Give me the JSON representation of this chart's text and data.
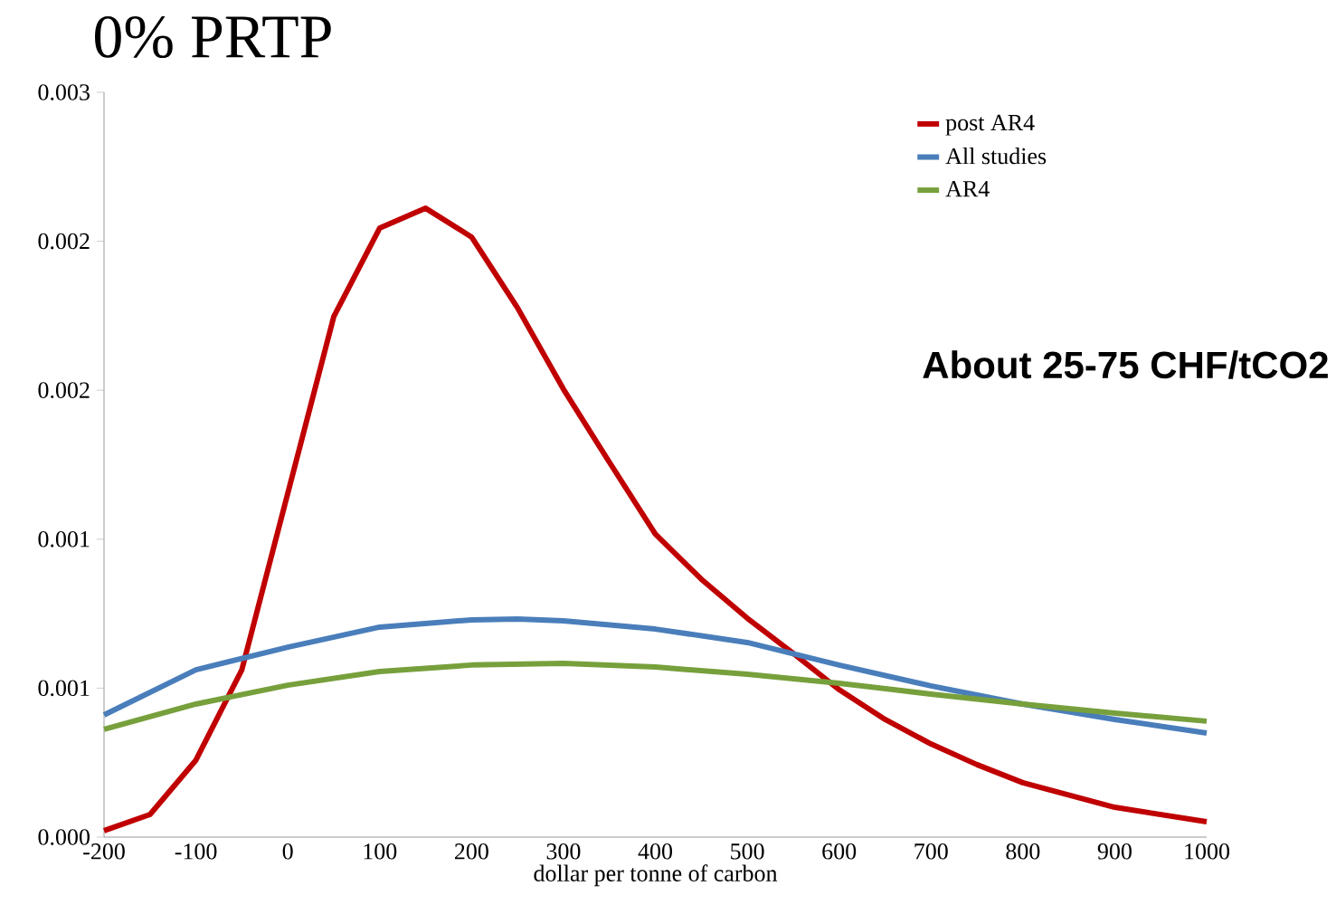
{
  "chart_data": {
    "type": "line",
    "title": "0% PRTP",
    "xlabel": "dollar per tonne of carbon",
    "annotations": [
      "About 25-75 CHF/tCO2"
    ],
    "x": [
      -200,
      -150,
      -100,
      -50,
      0,
      50,
      100,
      150,
      200,
      250,
      300,
      350,
      400,
      450,
      500,
      550,
      600,
      650,
      700,
      750,
      800,
      900,
      1000
    ],
    "series": [
      {
        "name": "post AR4",
        "color": "#c00000",
        "values": [
          2.6e-05,
          9.1e-05,
          0.00031,
          0.000674,
          0.001385,
          0.002096,
          0.002453,
          0.002533,
          0.002417,
          0.002132,
          0.001804,
          0.00151,
          0.001221,
          0.001039,
          0.000882,
          0.00074,
          0.000594,
          0.000474,
          0.000375,
          0.000292,
          0.000219,
          0.00012,
          6.2e-05
        ]
      },
      {
        "name": "All studies",
        "color": "#4a7ebb",
        "x": [
          -200,
          -100,
          0,
          100,
          200,
          250,
          300,
          400,
          500,
          600,
          700,
          800,
          900,
          1000
        ],
        "values": [
          0.000492,
          0.000674,
          0.000765,
          0.000846,
          0.000875,
          0.000878,
          0.000871,
          0.000838,
          0.000784,
          0.000693,
          0.000609,
          0.000536,
          0.000474,
          0.000419
        ]
      },
      {
        "name": "AR4",
        "color": "#77a03c",
        "x": [
          -200,
          -100,
          0,
          100,
          200,
          300,
          400,
          500,
          600,
          700,
          800,
          900,
          1000
        ],
        "values": [
          0.000434,
          0.000536,
          0.000612,
          0.000667,
          0.000693,
          0.0007,
          0.000685,
          0.000656,
          0.00062,
          0.000576,
          0.000536,
          0.000499,
          0.000467
        ]
      }
    ],
    "xlim": [
      -200,
      1000
    ],
    "xticks": [
      -200,
      -100,
      0,
      100,
      200,
      300,
      400,
      500,
      600,
      700,
      800,
      900,
      1000
    ],
    "ylim": [
      0,
      0.003
    ],
    "yticks": [
      {
        "value": 0,
        "label": "0.000"
      },
      {
        "value": 0.0006,
        "label": "0.001"
      },
      {
        "value": 0.0012,
        "label": "0.001"
      },
      {
        "value": 0.0018,
        "label": "0.002"
      },
      {
        "value": 0.0024,
        "label": "0.002"
      },
      {
        "value": 0.003,
        "label": "0.003"
      }
    ],
    "grid": false,
    "legend": "top right",
    "marker": "none",
    "line_style": "solid"
  }
}
